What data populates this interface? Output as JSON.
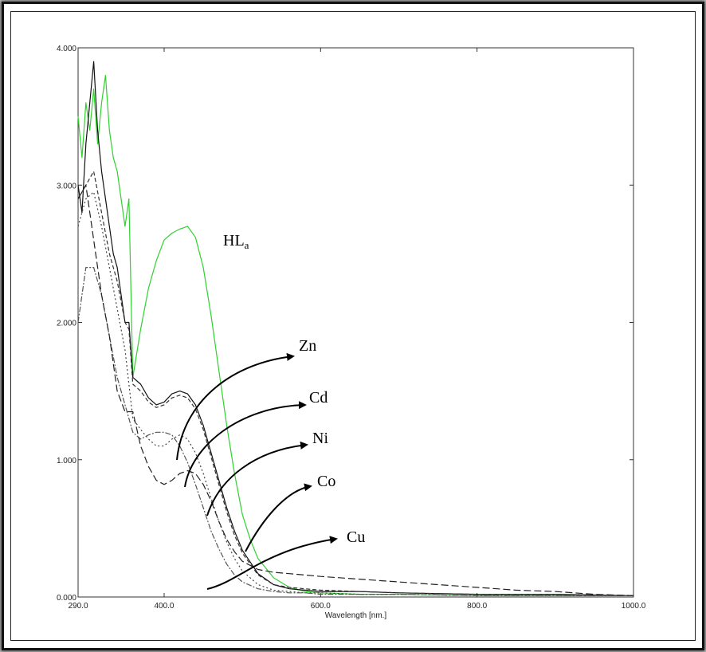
{
  "chart_data": {
    "type": "line",
    "title": "",
    "xlabel": "Wavelength [nm.]",
    "ylabel": "",
    "xlim": [
      290,
      1000
    ],
    "ylim": [
      0,
      4
    ],
    "x_ticks": [
      "290.0",
      "400.0",
      "600.0",
      "800.0",
      "1000.0"
    ],
    "y_ticks": [
      "0.000",
      "1.000",
      "2.000",
      "3.000",
      "4.000"
    ],
    "grid": false,
    "series": [
      {
        "name": "HL_a",
        "color": "#2fd12f",
        "dash": "",
        "x": [
          290,
          295,
          300,
          305,
          310,
          315,
          320,
          325,
          330,
          335,
          340,
          345,
          350,
          355,
          360,
          370,
          380,
          390,
          400,
          410,
          420,
          430,
          440,
          450,
          460,
          470,
          480,
          490,
          500,
          510,
          520,
          540,
          560,
          580,
          600,
          650,
          700,
          800,
          900,
          1000
        ],
        "y": [
          3.5,
          3.2,
          3.6,
          3.4,
          3.7,
          3.3,
          3.6,
          3.8,
          3.4,
          3.2,
          3.1,
          2.9,
          2.7,
          2.9,
          1.6,
          1.95,
          2.25,
          2.45,
          2.6,
          2.65,
          2.68,
          2.7,
          2.62,
          2.4,
          2.05,
          1.65,
          1.25,
          0.9,
          0.6,
          0.42,
          0.28,
          0.14,
          0.07,
          0.04,
          0.03,
          0.02,
          0.02,
          0.01,
          0.01,
          0.01
        ]
      },
      {
        "name": "Zn",
        "color": "#111111",
        "dash": "",
        "x": [
          290,
          295,
          300,
          305,
          310,
          315,
          320,
          325,
          330,
          335,
          340,
          345,
          350,
          355,
          360,
          370,
          380,
          390,
          400,
          410,
          420,
          430,
          440,
          450,
          460,
          470,
          480,
          490,
          500,
          520,
          540,
          560,
          580,
          600,
          650,
          700,
          800,
          900,
          1000
        ],
        "y": [
          3.0,
          2.8,
          3.3,
          3.6,
          3.9,
          3.4,
          3.1,
          2.9,
          2.7,
          2.5,
          2.4,
          2.2,
          2.0,
          2.0,
          1.6,
          1.55,
          1.45,
          1.4,
          1.42,
          1.48,
          1.5,
          1.48,
          1.4,
          1.25,
          1.05,
          0.85,
          0.65,
          0.48,
          0.34,
          0.17,
          0.09,
          0.06,
          0.05,
          0.04,
          0.04,
          0.03,
          0.02,
          0.02,
          0.01
        ]
      },
      {
        "name": "Cd",
        "color": "#333333",
        "dash": "5,3",
        "x": [
          290,
          300,
          310,
          320,
          330,
          340,
          350,
          355,
          360,
          370,
          380,
          390,
          400,
          410,
          420,
          430,
          440,
          450,
          460,
          470,
          480,
          490,
          500,
          520,
          540,
          560,
          580,
          600,
          650,
          700,
          800,
          900,
          1000
        ],
        "y": [
          2.9,
          3.0,
          3.1,
          2.8,
          2.5,
          2.3,
          2.0,
          1.95,
          1.55,
          1.5,
          1.42,
          1.38,
          1.4,
          1.45,
          1.47,
          1.45,
          1.37,
          1.22,
          1.02,
          0.82,
          0.62,
          0.45,
          0.32,
          0.16,
          0.09,
          0.07,
          0.06,
          0.05,
          0.04,
          0.03,
          0.02,
          0.02,
          0.01
        ]
      },
      {
        "name": "Ni",
        "color": "#444444",
        "dash": "2,3",
        "x": [
          290,
          300,
          310,
          320,
          330,
          340,
          350,
          360,
          370,
          380,
          390,
          400,
          410,
          420,
          430,
          440,
          450,
          460,
          470,
          480,
          490,
          500,
          520,
          540,
          560,
          580,
          600,
          650,
          700,
          800,
          900,
          1000
        ],
        "y": [
          2.7,
          2.9,
          2.95,
          2.7,
          2.4,
          2.1,
          1.8,
          1.3,
          1.22,
          1.15,
          1.1,
          1.1,
          1.15,
          1.18,
          1.15,
          1.05,
          0.9,
          0.72,
          0.55,
          0.4,
          0.28,
          0.19,
          0.09,
          0.05,
          0.04,
          0.03,
          0.03,
          0.02,
          0.02,
          0.01,
          0.01,
          0.01
        ]
      },
      {
        "name": "Co",
        "color": "#555555",
        "dash": "7,2,2,2",
        "x": [
          290,
          300,
          310,
          320,
          330,
          340,
          350,
          360,
          370,
          380,
          390,
          400,
          410,
          420,
          430,
          440,
          450,
          460,
          470,
          480,
          490,
          500,
          520,
          540,
          560,
          580,
          600,
          650,
          700,
          800,
          900,
          1000
        ],
        "y": [
          2.0,
          2.4,
          2.4,
          2.2,
          1.9,
          1.6,
          1.4,
          1.2,
          1.15,
          1.18,
          1.2,
          1.2,
          1.18,
          1.1,
          0.98,
          0.82,
          0.65,
          0.48,
          0.35,
          0.24,
          0.16,
          0.11,
          0.06,
          0.04,
          0.03,
          0.03,
          0.02,
          0.02,
          0.02,
          0.01,
          0.01,
          0.01
        ]
      },
      {
        "name": "Cu",
        "color": "#222222",
        "dash": "9,4",
        "x": [
          290,
          300,
          310,
          320,
          330,
          340,
          350,
          360,
          370,
          380,
          390,
          400,
          410,
          420,
          430,
          440,
          450,
          460,
          470,
          480,
          490,
          500,
          520,
          540,
          560,
          580,
          600,
          650,
          700,
          750,
          800,
          850,
          900,
          950,
          1000
        ],
        "y": [
          2.9,
          3.0,
          2.6,
          2.2,
          1.9,
          1.5,
          1.35,
          1.35,
          1.1,
          0.95,
          0.85,
          0.82,
          0.85,
          0.9,
          0.92,
          0.9,
          0.82,
          0.7,
          0.55,
          0.42,
          0.33,
          0.26,
          0.2,
          0.18,
          0.17,
          0.16,
          0.15,
          0.13,
          0.11,
          0.09,
          0.07,
          0.05,
          0.04,
          0.02,
          0.01
        ]
      }
    ],
    "annotations": [
      {
        "label": "HL",
        "sub": "a"
      },
      {
        "label": "Zn"
      },
      {
        "label": "Cd"
      },
      {
        "label": "Ni"
      },
      {
        "label": "Co"
      },
      {
        "label": "Cu"
      }
    ]
  }
}
